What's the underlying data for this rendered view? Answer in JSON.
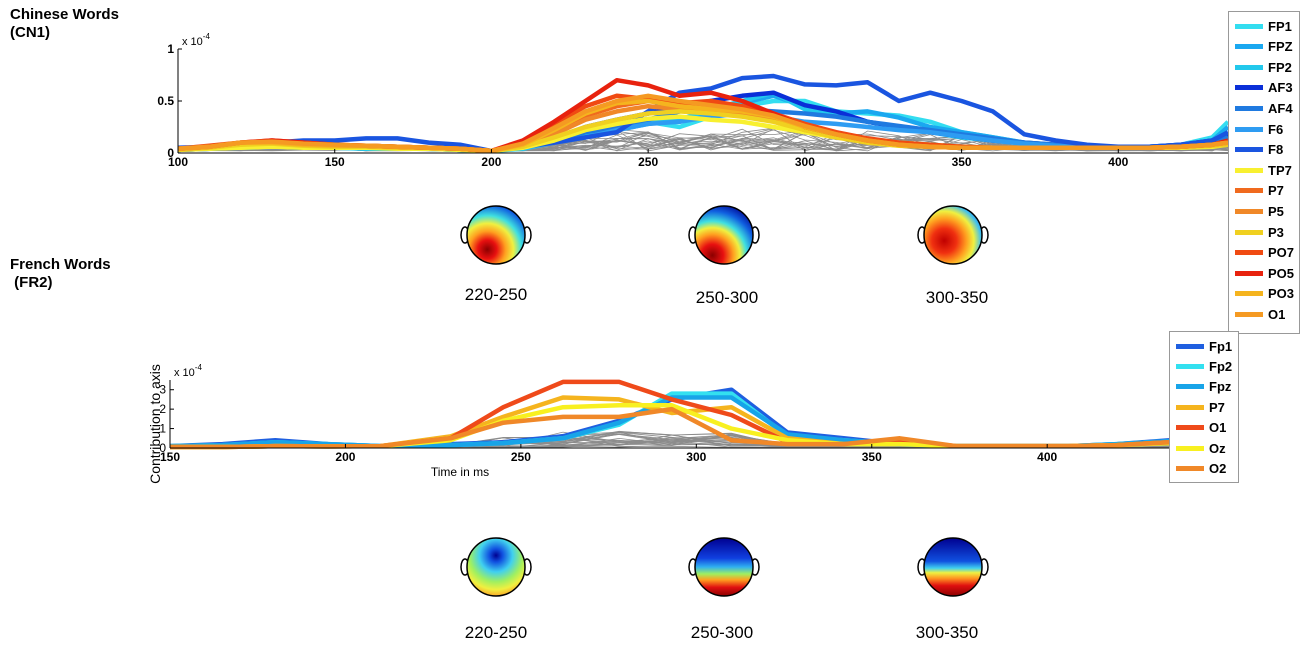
{
  "panel1": {
    "title": "Chinese Words\n(CN1)",
    "topo_labels": [
      "220-250",
      "250-300",
      "300-350"
    ]
  },
  "panel2": {
    "title": "French Words\n (FR2)",
    "topo_labels": [
      "220-250",
      "250-300",
      "300-350"
    ]
  },
  "chart_data": [
    {
      "type": "line",
      "title": "",
      "xlabel": "",
      "ylabel": "",
      "xlim": [
        100,
        435
      ],
      "ylim": [
        0,
        1
      ],
      "y_exponent_label": "x 10",
      "y_exponent_power": "-4",
      "x_ticks": [
        100,
        150,
        200,
        250,
        300,
        350,
        400
      ],
      "y_ticks": [
        0,
        0.5,
        1
      ],
      "y_tick_labels": [
        "0",
        "0.5",
        "1"
      ],
      "legend": "right-outside",
      "x": [
        100,
        110,
        120,
        130,
        140,
        150,
        160,
        170,
        180,
        190,
        200,
        210,
        220,
        230,
        240,
        250,
        260,
        270,
        280,
        290,
        300,
        310,
        320,
        330,
        340,
        350,
        360,
        370,
        380,
        390,
        400,
        410,
        420,
        430,
        435
      ],
      "series": [
        {
          "name": "FP1",
          "color": "#33ddf0",
          "values": [
            0.03,
            0.04,
            0.06,
            0.07,
            0.06,
            0.05,
            0.05,
            0.04,
            0.04,
            0.03,
            0.02,
            0.05,
            0.1,
            0.2,
            0.25,
            0.3,
            0.25,
            0.35,
            0.45,
            0.5,
            0.5,
            0.4,
            0.38,
            0.36,
            0.3,
            0.2,
            0.15,
            0.1,
            0.08,
            0.06,
            0.06,
            0.06,
            0.08,
            0.15,
            0.3
          ]
        },
        {
          "name": "FPZ",
          "color": "#1aa8f0",
          "values": [
            0.03,
            0.05,
            0.06,
            0.06,
            0.05,
            0.05,
            0.05,
            0.04,
            0.04,
            0.03,
            0.02,
            0.05,
            0.12,
            0.22,
            0.27,
            0.32,
            0.3,
            0.38,
            0.48,
            0.55,
            0.45,
            0.38,
            0.4,
            0.34,
            0.25,
            0.2,
            0.15,
            0.1,
            0.07,
            0.06,
            0.06,
            0.06,
            0.08,
            0.12,
            0.25
          ]
        },
        {
          "name": "FP2",
          "color": "#22c8ec",
          "values": [
            0.03,
            0.05,
            0.05,
            0.06,
            0.06,
            0.05,
            0.04,
            0.04,
            0.04,
            0.03,
            0.02,
            0.04,
            0.1,
            0.18,
            0.22,
            0.28,
            0.32,
            0.42,
            0.5,
            0.58,
            0.42,
            0.36,
            0.3,
            0.25,
            0.2,
            0.15,
            0.12,
            0.09,
            0.07,
            0.06,
            0.06,
            0.06,
            0.07,
            0.1,
            0.2
          ]
        },
        {
          "name": "AF3",
          "color": "#0a2fd8",
          "values": [
            0.03,
            0.04,
            0.05,
            0.06,
            0.05,
            0.05,
            0.05,
            0.05,
            0.04,
            0.04,
            0.02,
            0.06,
            0.14,
            0.25,
            0.32,
            0.38,
            0.45,
            0.5,
            0.55,
            0.58,
            0.46,
            0.4,
            0.3,
            0.25,
            0.2,
            0.16,
            0.12,
            0.1,
            0.08,
            0.06,
            0.06,
            0.06,
            0.08,
            0.12,
            0.18
          ]
        },
        {
          "name": "AF4",
          "color": "#1f7ae0",
          "values": [
            0.03,
            0.05,
            0.06,
            0.07,
            0.06,
            0.06,
            0.05,
            0.05,
            0.05,
            0.04,
            0.02,
            0.05,
            0.12,
            0.2,
            0.25,
            0.32,
            0.4,
            0.46,
            0.42,
            0.4,
            0.38,
            0.35,
            0.3,
            0.26,
            0.22,
            0.18,
            0.14,
            0.1,
            0.08,
            0.06,
            0.06,
            0.06,
            0.07,
            0.1,
            0.15
          ]
        },
        {
          "name": "F6",
          "color": "#2e9cf2",
          "values": [
            0.03,
            0.04,
            0.05,
            0.06,
            0.06,
            0.05,
            0.05,
            0.05,
            0.04,
            0.03,
            0.02,
            0.05,
            0.1,
            0.15,
            0.22,
            0.28,
            0.3,
            0.35,
            0.38,
            0.35,
            0.3,
            0.28,
            0.25,
            0.22,
            0.2,
            0.16,
            0.12,
            0.09,
            0.07,
            0.06,
            0.06,
            0.06,
            0.07,
            0.08,
            0.12
          ]
        },
        {
          "name": "F8",
          "color": "#1a55e0",
          "values": [
            0.05,
            0.06,
            0.08,
            0.1,
            0.12,
            0.12,
            0.14,
            0.14,
            0.1,
            0.08,
            0.02,
            0.06,
            0.1,
            0.15,
            0.2,
            0.4,
            0.58,
            0.62,
            0.72,
            0.74,
            0.66,
            0.65,
            0.68,
            0.5,
            0.58,
            0.5,
            0.4,
            0.18,
            0.12,
            0.08,
            0.06,
            0.06,
            0.08,
            0.12,
            0.2
          ]
        },
        {
          "name": "TP7",
          "color": "#f8f030",
          "values": [
            0.03,
            0.04,
            0.05,
            0.06,
            0.05,
            0.05,
            0.05,
            0.04,
            0.04,
            0.03,
            0.02,
            0.05,
            0.12,
            0.22,
            0.28,
            0.33,
            0.35,
            0.32,
            0.3,
            0.25,
            0.2,
            0.15,
            0.12,
            0.1,
            0.08,
            0.06,
            0.05,
            0.05,
            0.05,
            0.05,
            0.05,
            0.05,
            0.05,
            0.06,
            0.08
          ]
        },
        {
          "name": "P7",
          "color": "#f06a1e",
          "values": [
            0.04,
            0.06,
            0.1,
            0.1,
            0.08,
            0.07,
            0.07,
            0.06,
            0.05,
            0.04,
            0.02,
            0.08,
            0.2,
            0.36,
            0.45,
            0.5,
            0.48,
            0.42,
            0.4,
            0.35,
            0.25,
            0.18,
            0.12,
            0.08,
            0.06,
            0.05,
            0.05,
            0.05,
            0.05,
            0.05,
            0.05,
            0.05,
            0.06,
            0.08,
            0.1
          ]
        },
        {
          "name": "P5",
          "color": "#f08828",
          "values": [
            0.04,
            0.06,
            0.09,
            0.1,
            0.08,
            0.07,
            0.07,
            0.06,
            0.05,
            0.04,
            0.02,
            0.07,
            0.18,
            0.32,
            0.4,
            0.45,
            0.42,
            0.4,
            0.38,
            0.32,
            0.22,
            0.16,
            0.1,
            0.08,
            0.06,
            0.05,
            0.05,
            0.05,
            0.05,
            0.05,
            0.05,
            0.05,
            0.06,
            0.08,
            0.1
          ]
        },
        {
          "name": "P3",
          "color": "#f0d020",
          "values": [
            0.03,
            0.05,
            0.08,
            0.09,
            0.07,
            0.06,
            0.06,
            0.05,
            0.05,
            0.04,
            0.02,
            0.06,
            0.15,
            0.25,
            0.32,
            0.38,
            0.4,
            0.38,
            0.35,
            0.3,
            0.22,
            0.15,
            0.1,
            0.07,
            0.06,
            0.05,
            0.05,
            0.05,
            0.05,
            0.05,
            0.05,
            0.05,
            0.06,
            0.07,
            0.08
          ]
        },
        {
          "name": "PO7",
          "color": "#f04a12",
          "values": [
            0.04,
            0.07,
            0.1,
            0.12,
            0.1,
            0.08,
            0.07,
            0.06,
            0.05,
            0.04,
            0.02,
            0.1,
            0.28,
            0.45,
            0.55,
            0.52,
            0.48,
            0.5,
            0.45,
            0.38,
            0.28,
            0.2,
            0.14,
            0.1,
            0.08,
            0.06,
            0.05,
            0.05,
            0.05,
            0.05,
            0.05,
            0.05,
            0.06,
            0.08,
            0.1
          ]
        },
        {
          "name": "PO5",
          "color": "#e8220e",
          "values": [
            0.04,
            0.06,
            0.1,
            0.12,
            0.1,
            0.08,
            0.07,
            0.06,
            0.05,
            0.04,
            0.02,
            0.12,
            0.3,
            0.5,
            0.7,
            0.65,
            0.55,
            0.58,
            0.5,
            0.38,
            0.25,
            0.18,
            0.12,
            0.08,
            0.06,
            0.05,
            0.05,
            0.05,
            0.05,
            0.05,
            0.05,
            0.05,
            0.06,
            0.08,
            0.12
          ]
        },
        {
          "name": "PO3",
          "color": "#f5b41e",
          "values": [
            0.04,
            0.06,
            0.1,
            0.1,
            0.08,
            0.07,
            0.07,
            0.06,
            0.05,
            0.04,
            0.02,
            0.08,
            0.22,
            0.38,
            0.48,
            0.5,
            0.45,
            0.42,
            0.4,
            0.35,
            0.25,
            0.18,
            0.12,
            0.08,
            0.06,
            0.05,
            0.05,
            0.05,
            0.05,
            0.05,
            0.05,
            0.05,
            0.06,
            0.08,
            0.1
          ]
        },
        {
          "name": "O1",
          "color": "#f59a22",
          "values": [
            0.04,
            0.06,
            0.1,
            0.11,
            0.09,
            0.08,
            0.07,
            0.06,
            0.05,
            0.04,
            0.02,
            0.09,
            0.24,
            0.4,
            0.5,
            0.55,
            0.5,
            0.46,
            0.42,
            0.36,
            0.26,
            0.18,
            0.12,
            0.08,
            0.06,
            0.05,
            0.05,
            0.05,
            0.05,
            0.05,
            0.05,
            0.05,
            0.06,
            0.08,
            0.1
          ]
        }
      ]
    },
    {
      "type": "line",
      "title": "",
      "xlabel": "Time in ms",
      "ylabel": "Contribution to axis",
      "xlim": [
        150,
        435
      ],
      "ylim": [
        0,
        3.5
      ],
      "y_exponent_label": "x 10",
      "y_exponent_power": "-4",
      "x_ticks": [
        150,
        200,
        250,
        300,
        350,
        400
      ],
      "y_ticks": [
        0,
        1,
        2,
        3
      ],
      "y_tick_labels": [
        "0",
        "1",
        "2",
        "3"
      ],
      "legend": "right-outside",
      "x": [
        150,
        165,
        180,
        195,
        210,
        230,
        245,
        262,
        278,
        293,
        310,
        326,
        342,
        358,
        374,
        390,
        406,
        420,
        435
      ],
      "series": [
        {
          "name": "Fp1",
          "color": "#1f5fe0",
          "values": [
            0.1,
            0.2,
            0.4,
            0.2,
            0.1,
            0.2,
            0.3,
            0.6,
            1.4,
            2.5,
            3.0,
            0.8,
            0.5,
            0.2,
            0.1,
            0.1,
            0.1,
            0.2,
            0.4
          ]
        },
        {
          "name": "Fp2",
          "color": "#33e0f0",
          "values": [
            0.1,
            0.15,
            0.3,
            0.2,
            0.1,
            0.15,
            0.25,
            0.5,
            1.2,
            2.8,
            2.8,
            0.6,
            0.4,
            0.2,
            0.1,
            0.1,
            0.1,
            0.2,
            0.35
          ]
        },
        {
          "name": "Fpz",
          "color": "#18a4e8",
          "values": [
            0.1,
            0.15,
            0.3,
            0.2,
            0.1,
            0.15,
            0.25,
            0.5,
            1.3,
            2.6,
            2.6,
            0.7,
            0.4,
            0.2,
            0.1,
            0.1,
            0.1,
            0.2,
            0.35
          ]
        },
        {
          "name": "P7",
          "color": "#f5b41e",
          "values": [
            0.05,
            0.05,
            0.1,
            0.08,
            0.1,
            0.6,
            1.6,
            2.6,
            2.5,
            1.8,
            2.1,
            0.5,
            0.2,
            0.3,
            0.1,
            0.1,
            0.1,
            0.15,
            0.3
          ]
        },
        {
          "name": "O1",
          "color": "#ef4a1a",
          "values": [
            0.05,
            0.05,
            0.1,
            0.08,
            0.1,
            0.5,
            2.1,
            3.4,
            3.4,
            2.5,
            1.7,
            0.3,
            0.2,
            0.4,
            0.1,
            0.1,
            0.1,
            0.15,
            0.3
          ]
        },
        {
          "name": "Oz",
          "color": "#f8f020",
          "values": [
            0.05,
            0.05,
            0.1,
            0.08,
            0.1,
            0.4,
            1.4,
            2.1,
            2.2,
            2.2,
            1.0,
            0.4,
            0.2,
            0.2,
            0.1,
            0.1,
            0.1,
            0.15,
            0.25
          ]
        },
        {
          "name": "O2",
          "color": "#f08828",
          "values": [
            0.05,
            0.05,
            0.1,
            0.08,
            0.1,
            0.5,
            1.3,
            1.6,
            1.6,
            2.0,
            0.4,
            0.2,
            0.2,
            0.5,
            0.1,
            0.1,
            0.1,
            0.15,
            0.3
          ]
        }
      ]
    }
  ]
}
